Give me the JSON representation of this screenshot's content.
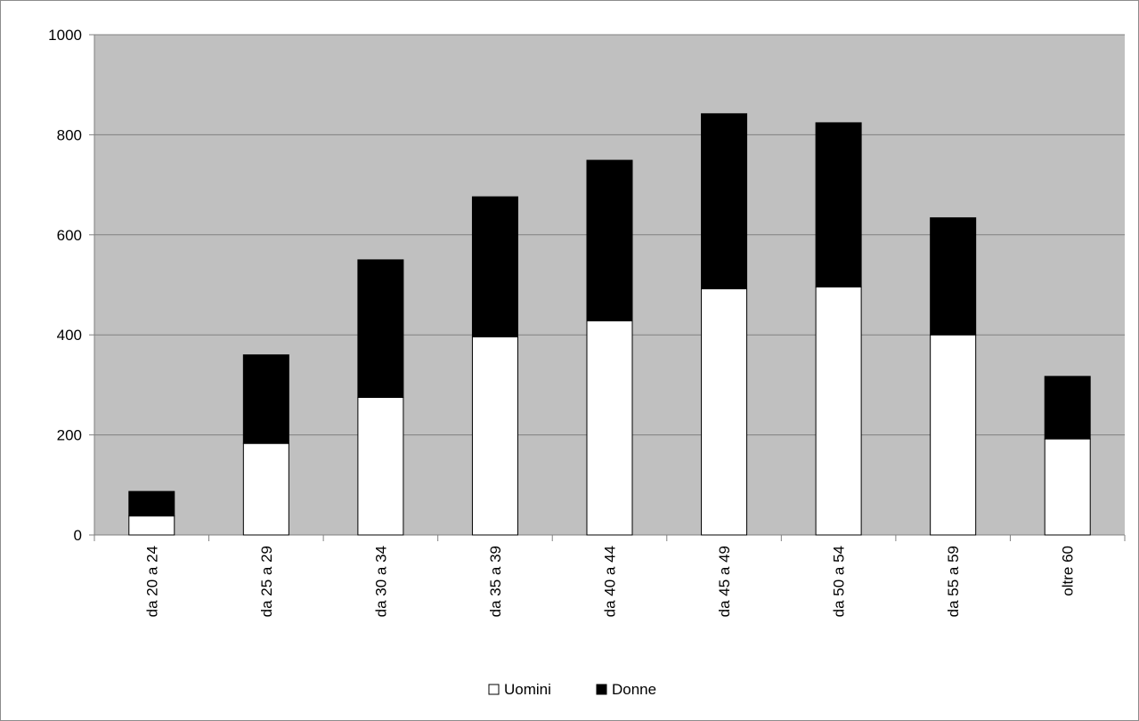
{
  "chart_data": {
    "type": "bar",
    "stacked": true,
    "title": "",
    "xlabel": "",
    "ylabel": "",
    "ylim": [
      0,
      1000
    ],
    "yticks": [
      0,
      200,
      400,
      600,
      800,
      1000
    ],
    "grid": true,
    "legend_position": "bottom",
    "categories": [
      "da 20 a 24",
      "da 25 a 29",
      "da 30 a 34",
      "da 35 a 39",
      "da 40 a 44",
      "da 45 a 49",
      "da 50 a 54",
      "da 55 a 59",
      "oltre 60"
    ],
    "series": [
      {
        "name": "Uomini",
        "color": "#ffffff",
        "values": [
          38,
          183,
          275,
          396,
          428,
          492,
          496,
          400,
          192
        ]
      },
      {
        "name": "Donne",
        "color": "#000000",
        "values": [
          49,
          177,
          275,
          280,
          321,
          350,
          328,
          234,
          125
        ]
      }
    ],
    "plot_background": "#c0c0c0",
    "gridline_color": "#808080"
  }
}
